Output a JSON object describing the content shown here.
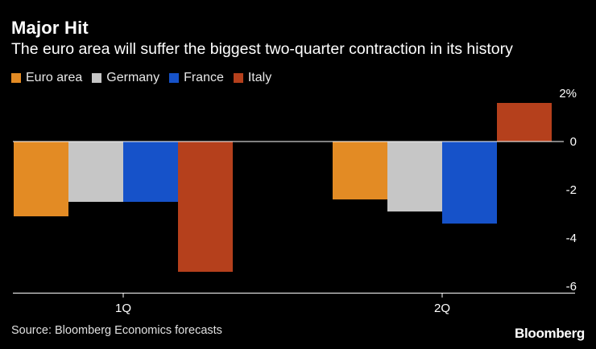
{
  "title": "Major Hit",
  "subtitle": "The euro area will suffer the biggest two-quarter contraction in its history",
  "source": "Source: Bloomberg Economics forecasts",
  "logo": "Bloomberg",
  "chart_data": {
    "type": "bar",
    "categories": [
      "1Q",
      "2Q"
    ],
    "series": [
      {
        "name": "Euro area",
        "color": "#e38b24",
        "values": [
          -3.1,
          -2.4
        ]
      },
      {
        "name": "Germany",
        "color": "#c6c6c6",
        "values": [
          -2.5,
          -2.9
        ]
      },
      {
        "name": "France",
        "color": "#1652c9",
        "values": [
          -2.5,
          -3.4
        ]
      },
      {
        "name": "Italy",
        "color": "#b5401c",
        "values": [
          -5.4,
          1.6
        ]
      }
    ],
    "ylim": [
      -6,
      2
    ],
    "yticks": [
      -6,
      -4,
      -2,
      0,
      2
    ],
    "ytick_labels": [
      "-6",
      "-4",
      "-2",
      "0",
      "2%"
    ],
    "xlabel": "",
    "ylabel": "",
    "legend_position": "top-left",
    "grid": false
  }
}
